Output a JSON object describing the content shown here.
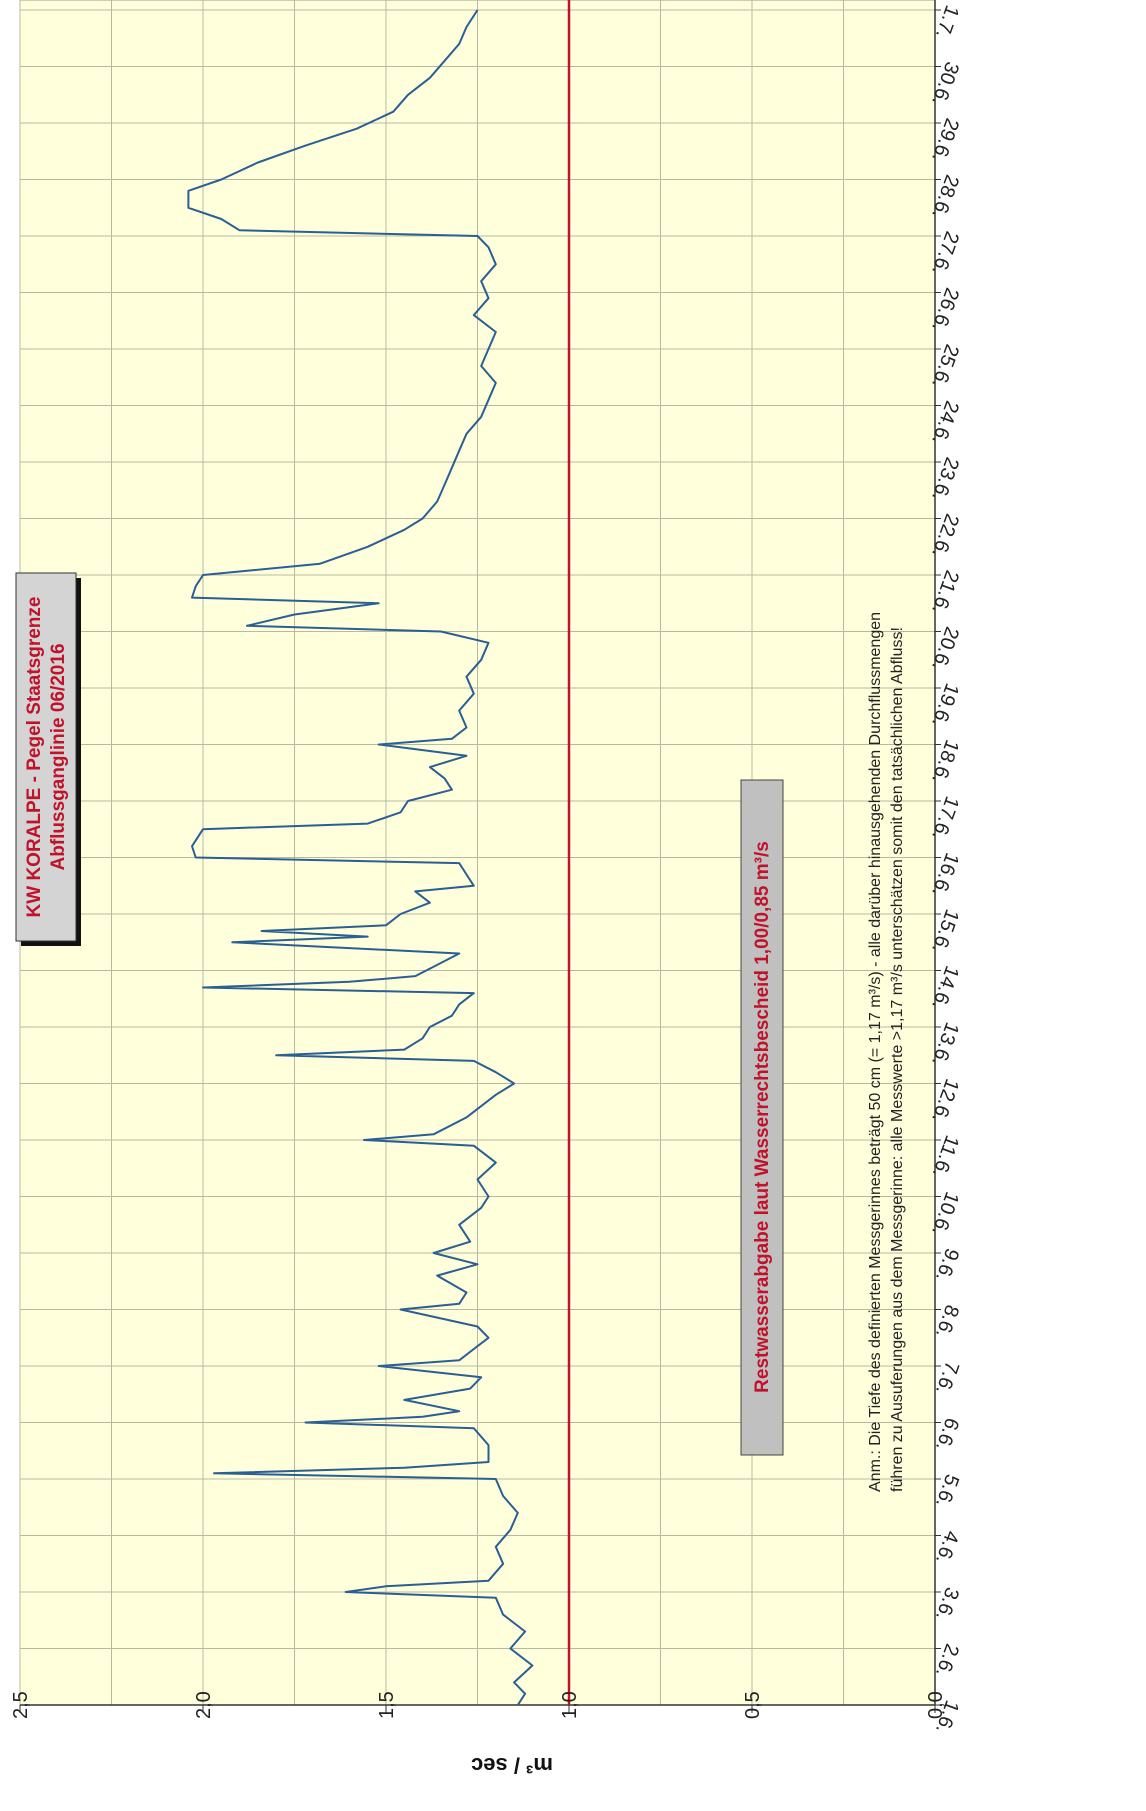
{
  "chart_data": {
    "type": "line",
    "title": "KW KORALPE - Pegel Staatsgrenze",
    "subtitle": "Abflussganglinie  06/2016",
    "ylabel": "m³ / sec",
    "ylim": [
      0.0,
      2.5
    ],
    "y_ticks": [
      "0,0",
      "0,5",
      "1,0",
      "1,5",
      "2,0",
      "2,5"
    ],
    "x_ticks": [
      "1.6.",
      "2.6.",
      "3.6.",
      "4.6.",
      "5.6.",
      "6.6.",
      "7.6.",
      "8.6.",
      "9.6.",
      "10.6.",
      "11.6.",
      "12.6.",
      "13.6.",
      "14.6.",
      "15.6.",
      "16.6.",
      "17.6.",
      "18.6.",
      "19.6.",
      "20.6.",
      "21.6.",
      "22.6.",
      "23.6.",
      "24.6.",
      "25.6.",
      "26.6.",
      "27.6.",
      "28.6.",
      "29.6.",
      "30.6.",
      "1.7."
    ],
    "xlim_days": [
      1,
      31
    ],
    "grid": true,
    "reference_line": {
      "value": 1.0,
      "label": "Restwasserabgabe laut Wasserrechtsbescheid   1,00/0,85 m³/s",
      "color": "#c0122a"
    },
    "note": {
      "line1": "Anm.: Die Tiefe des definierten Messgerinnes beträgt 50 cm (= 1,17 m³/s) - alle darüber hinausgehenden Durchflussmengen",
      "line2": "führen zu Ausuferungen aus dem Messgerinne: alle Messwerte >1,17 m³/s unterschätzen somit den tatsächlichen Abfluss!"
    },
    "series": [
      {
        "color": "#2a5f93",
        "points": [
          [
            1.0,
            1.14
          ],
          [
            1.2,
            1.12
          ],
          [
            1.4,
            1.15
          ],
          [
            1.7,
            1.1
          ],
          [
            2.0,
            1.16
          ],
          [
            2.3,
            1.12
          ],
          [
            2.6,
            1.18
          ],
          [
            2.9,
            1.2
          ],
          [
            3.0,
            1.61
          ],
          [
            3.1,
            1.5
          ],
          [
            3.2,
            1.22
          ],
          [
            3.5,
            1.18
          ],
          [
            3.8,
            1.2
          ],
          [
            4.1,
            1.16
          ],
          [
            4.4,
            1.14
          ],
          [
            4.7,
            1.18
          ],
          [
            5.0,
            1.2
          ],
          [
            5.1,
            1.97
          ],
          [
            5.2,
            1.45
          ],
          [
            5.3,
            1.22
          ],
          [
            5.6,
            1.22
          ],
          [
            5.9,
            1.26
          ],
          [
            6.0,
            1.72
          ],
          [
            6.1,
            1.4
          ],
          [
            6.2,
            1.3
          ],
          [
            6.4,
            1.45
          ],
          [
            6.6,
            1.27
          ],
          [
            6.8,
            1.24
          ],
          [
            7.0,
            1.52
          ],
          [
            7.1,
            1.3
          ],
          [
            7.3,
            1.26
          ],
          [
            7.5,
            1.22
          ],
          [
            7.7,
            1.25
          ],
          [
            8.0,
            1.46
          ],
          [
            8.1,
            1.3
          ],
          [
            8.3,
            1.28
          ],
          [
            8.6,
            1.36
          ],
          [
            8.8,
            1.25
          ],
          [
            9.0,
            1.37
          ],
          [
            9.2,
            1.27
          ],
          [
            9.5,
            1.3
          ],
          [
            9.8,
            1.24
          ],
          [
            10.0,
            1.22
          ],
          [
            10.3,
            1.25
          ],
          [
            10.6,
            1.2
          ],
          [
            10.9,
            1.26
          ],
          [
            11.0,
            1.56
          ],
          [
            11.1,
            1.37
          ],
          [
            11.4,
            1.28
          ],
          [
            11.6,
            1.24
          ],
          [
            11.8,
            1.2
          ],
          [
            12.0,
            1.15
          ],
          [
            12.2,
            1.2
          ],
          [
            12.4,
            1.26
          ],
          [
            12.5,
            1.8
          ],
          [
            12.6,
            1.45
          ],
          [
            12.8,
            1.4
          ],
          [
            13.0,
            1.38
          ],
          [
            13.2,
            1.32
          ],
          [
            13.4,
            1.3
          ],
          [
            13.6,
            1.26
          ],
          [
            13.7,
            2.0
          ],
          [
            13.8,
            1.6
          ],
          [
            13.9,
            1.42
          ],
          [
            14.1,
            1.36
          ],
          [
            14.3,
            1.3
          ],
          [
            14.5,
            1.92
          ],
          [
            14.6,
            1.55
          ],
          [
            14.7,
            1.84
          ],
          [
            14.8,
            1.5
          ],
          [
            15.0,
            1.46
          ],
          [
            15.2,
            1.38
          ],
          [
            15.4,
            1.42
          ],
          [
            15.5,
            1.26
          ],
          [
            15.7,
            1.28
          ],
          [
            15.9,
            1.3
          ],
          [
            16.0,
            2.02
          ],
          [
            16.2,
            2.03
          ],
          [
            16.5,
            2.0
          ],
          [
            16.6,
            1.55
          ],
          [
            16.8,
            1.46
          ],
          [
            17.0,
            1.44
          ],
          [
            17.2,
            1.32
          ],
          [
            17.4,
            1.34
          ],
          [
            17.6,
            1.38
          ],
          [
            17.8,
            1.28
          ],
          [
            18.0,
            1.52
          ],
          [
            18.1,
            1.32
          ],
          [
            18.3,
            1.28
          ],
          [
            18.6,
            1.3
          ],
          [
            18.9,
            1.26
          ],
          [
            19.2,
            1.28
          ],
          [
            19.5,
            1.24
          ],
          [
            19.8,
            1.22
          ],
          [
            20.0,
            1.35
          ],
          [
            20.1,
            1.88
          ],
          [
            20.3,
            1.75
          ],
          [
            20.5,
            1.52
          ],
          [
            20.6,
            2.03
          ],
          [
            20.8,
            2.02
          ],
          [
            21.0,
            2.0
          ],
          [
            21.2,
            1.68
          ],
          [
            21.5,
            1.55
          ],
          [
            21.8,
            1.45
          ],
          [
            22.0,
            1.4
          ],
          [
            22.3,
            1.36
          ],
          [
            22.6,
            1.34
          ],
          [
            22.9,
            1.32
          ],
          [
            23.2,
            1.3
          ],
          [
            23.5,
            1.28
          ],
          [
            23.8,
            1.24
          ],
          [
            24.1,
            1.22
          ],
          [
            24.4,
            1.2
          ],
          [
            24.7,
            1.24
          ],
          [
            25.0,
            1.22
          ],
          [
            25.3,
            1.2
          ],
          [
            25.6,
            1.26
          ],
          [
            25.9,
            1.22
          ],
          [
            26.2,
            1.24
          ],
          [
            26.5,
            1.2
          ],
          [
            26.8,
            1.22
          ],
          [
            27.0,
            1.25
          ],
          [
            27.1,
            1.9
          ],
          [
            27.3,
            1.95
          ],
          [
            27.5,
            2.04
          ],
          [
            27.8,
            2.04
          ],
          [
            28.0,
            1.95
          ],
          [
            28.3,
            1.85
          ],
          [
            28.6,
            1.72
          ],
          [
            28.9,
            1.58
          ],
          [
            29.2,
            1.48
          ],
          [
            29.5,
            1.44
          ],
          [
            29.8,
            1.38
          ],
          [
            30.1,
            1.34
          ],
          [
            30.4,
            1.3
          ],
          [
            30.7,
            1.28
          ],
          [
            31.0,
            1.25
          ]
        ]
      }
    ]
  }
}
